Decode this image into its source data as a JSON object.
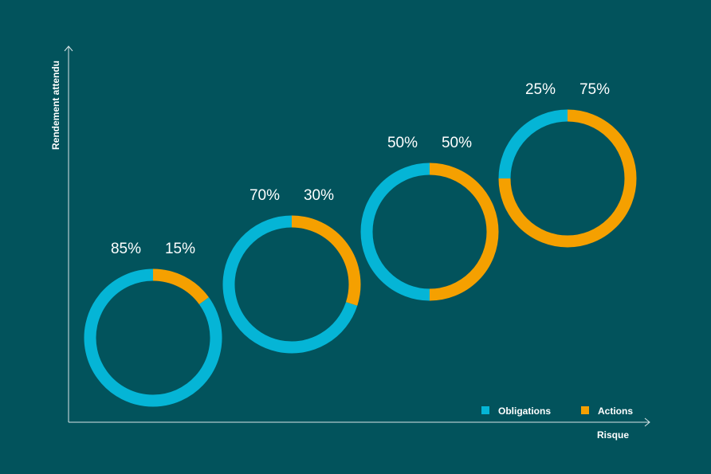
{
  "chart_data": {
    "type": "donut-progression",
    "xlabel": "Risque",
    "ylabel": "Rendement attendu",
    "series": [
      {
        "name": "Obligations",
        "color": "#05b5d6"
      },
      {
        "name": "Actions",
        "color": "#f5a000"
      }
    ],
    "portfolios": [
      {
        "obligations": 85,
        "actions": 15,
        "obligations_label": "85%",
        "actions_label": "15%"
      },
      {
        "obligations": 70,
        "actions": 30,
        "obligations_label": "70%",
        "actions_label": "30%"
      },
      {
        "obligations": 50,
        "actions": 50,
        "obligations_label": "50%",
        "actions_label": "50%"
      },
      {
        "obligations": 25,
        "actions": 75,
        "obligations_label": "25%",
        "actions_label": "75%"
      }
    ],
    "legend_position": "bottom-right",
    "background": "#02535c",
    "axis_color": "#d9e6e8"
  }
}
